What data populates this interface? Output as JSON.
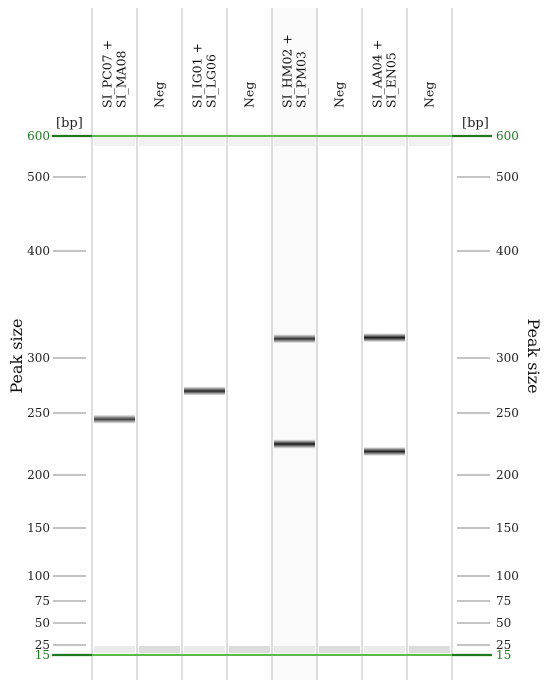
{
  "figure": {
    "unit": "[bp]",
    "axis_title": "Peak size",
    "ladder": {
      "ticks": [
        {
          "bp": 600,
          "label": "600",
          "marker": true
        },
        {
          "bp": 500,
          "label": "500"
        },
        {
          "bp": 400,
          "label": "400"
        },
        {
          "bp": 300,
          "label": "300"
        },
        {
          "bp": 250,
          "label": "250"
        },
        {
          "bp": 200,
          "label": "200"
        },
        {
          "bp": 150,
          "label": "150"
        },
        {
          "bp": 100,
          "label": "100"
        },
        {
          "bp": 75,
          "label": "75"
        },
        {
          "bp": 50,
          "label": "50"
        },
        {
          "bp": 25,
          "label": "25"
        },
        {
          "bp": 15,
          "label": "15",
          "marker": true
        }
      ]
    },
    "lanes": [
      {
        "label_lines": [
          "SI_PC07 +",
          "SI_MA08"
        ],
        "bands": [
          {
            "bp": 245,
            "strength": 0.75
          }
        ],
        "background": "#ffffff"
      },
      {
        "label_lines": [
          "Neg"
        ],
        "bands": [],
        "background": "#ffffff"
      },
      {
        "label_lines": [
          "SI_IG01 +",
          "SI_LG06"
        ],
        "bands": [
          {
            "bp": 270,
            "strength": 0.85
          }
        ],
        "background": "#ffffff"
      },
      {
        "label_lines": [
          "Neg"
        ],
        "bands": [],
        "background": "#ffffff"
      },
      {
        "label_lines": [
          "SI_HM02 +",
          "SI_PM03"
        ],
        "bands": [
          {
            "bp": 318,
            "strength": 0.8
          },
          {
            "bp": 225,
            "strength": 0.9
          }
        ],
        "background": "#fafafa"
      },
      {
        "label_lines": [
          "Neg"
        ],
        "bands": [],
        "background": "#ffffff"
      },
      {
        "label_lines": [
          "SI_AA04 +",
          "SI_EN05"
        ],
        "bands": [
          {
            "bp": 319,
            "strength": 0.92
          },
          {
            "bp": 219,
            "strength": 0.88
          }
        ],
        "background": "#ffffff"
      },
      {
        "label_lines": [
          "Neg"
        ],
        "bands": [],
        "background": "#ffffff"
      }
    ],
    "colors": {
      "marker": "#5cb84a",
      "marker_label": "#1f7a1f",
      "band": "#1e1e1e",
      "lane_separator": "#c9c9c9",
      "tick": "#8a8a8a"
    }
  }
}
